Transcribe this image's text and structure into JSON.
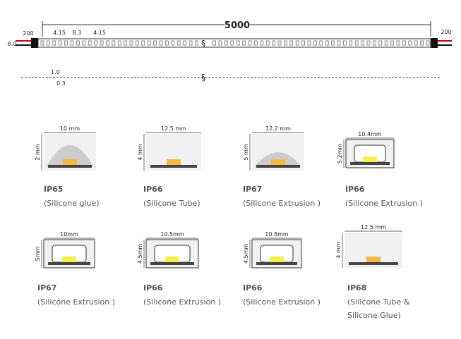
{
  "strip": {
    "length": "5000",
    "lead_left": "200",
    "lead_right": "200",
    "width": "8.0",
    "pitch_a": "4.15",
    "pitch_b": "8.3",
    "pitch_c": "4.15",
    "thickness": "1.0",
    "pcb": "0.3"
  },
  "profiles": [
    {
      "width": "10 mm",
      "height": "2 mm",
      "rating": "IP65",
      "description": [
        "(Silicone glue)"
      ]
    },
    {
      "width": "12.5 mm",
      "height": "4 mm",
      "rating": "IP66",
      "description": [
        "(Silicone Tube)"
      ]
    },
    {
      "width": "12.2 mm",
      "height": "5 mm",
      "rating": "IP67",
      "description": [
        "(Silicone Extrusion )"
      ]
    },
    {
      "width": "10.4mm",
      "height": "5.2mm",
      "rating": "IP66",
      "description": [
        "(Silicone Extrusion )"
      ]
    },
    {
      "width": "10mm",
      "height": "5mm",
      "rating": "IP67",
      "description": [
        "(Silicone Extrusion )"
      ]
    },
    {
      "width": "10.5mm",
      "height": "4.5mm",
      "rating": "IP66",
      "description": [
        "(Silicone Extrusion )"
      ]
    },
    {
      "width": "10.5mm",
      "height": "4.5mm",
      "rating": "IP66",
      "description": [
        "(Silicone Extrusion )"
      ]
    },
    {
      "width": "12.5 mm",
      "height": "4 mm",
      "rating": "IP68",
      "description": [
        "(Silicone Tube &",
        "Silicone Glue)"
      ]
    }
  ]
}
